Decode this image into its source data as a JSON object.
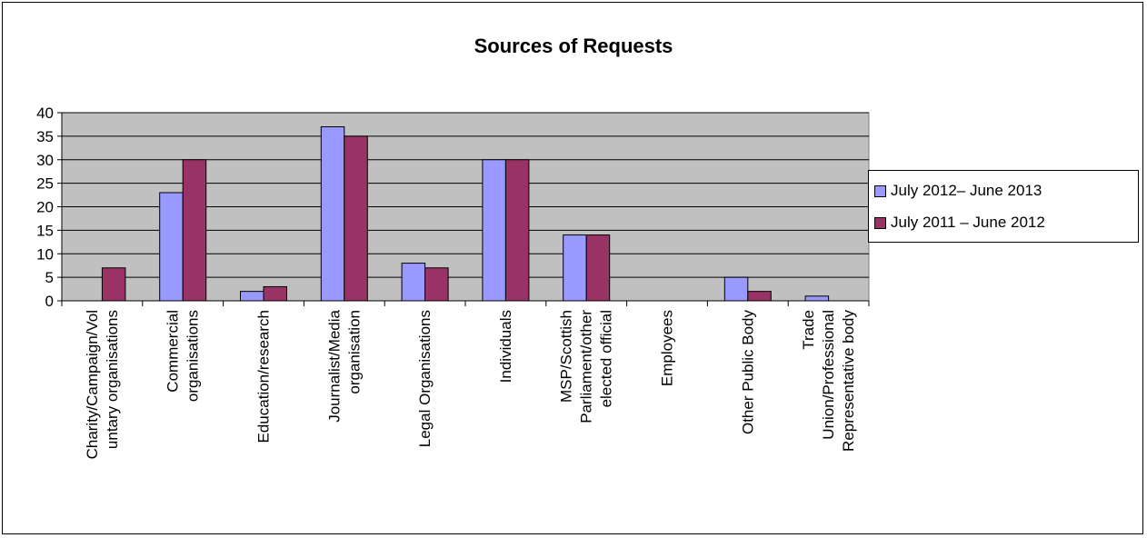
{
  "chart_data": {
    "type": "bar",
    "title": "Sources of Requests",
    "xlabel": "",
    "ylabel": "",
    "ylim": [
      0,
      40
    ],
    "yticks": [
      0,
      5,
      10,
      15,
      20,
      25,
      30,
      35,
      40
    ],
    "grid": true,
    "legend_position": "right",
    "plot_background": "#c0c0c0",
    "categories": [
      [
        "Charity/Campaign/Vol",
        "untary organisations"
      ],
      [
        "Commercial",
        "organisations"
      ],
      [
        "Education/research"
      ],
      [
        "Journalist/Media",
        "organisation"
      ],
      [
        "Legal Organisations"
      ],
      [
        "Individuals"
      ],
      [
        "MSP/Scottish",
        "Parliament/other",
        "elected official"
      ],
      [
        "Employees"
      ],
      [
        "Other Public Body"
      ],
      [
        "Trade",
        "Union/Professional",
        "Representative body"
      ]
    ],
    "series": [
      {
        "name": "July 2012– June 2013",
        "color": "#9999ff",
        "values": [
          0,
          23,
          2,
          37,
          8,
          30,
          14,
          0,
          5,
          1
        ]
      },
      {
        "name": "July 2011 – June 2012",
        "color": "#993366",
        "values": [
          7,
          30,
          3,
          35,
          7,
          30,
          14,
          0,
          2,
          0
        ]
      }
    ]
  }
}
